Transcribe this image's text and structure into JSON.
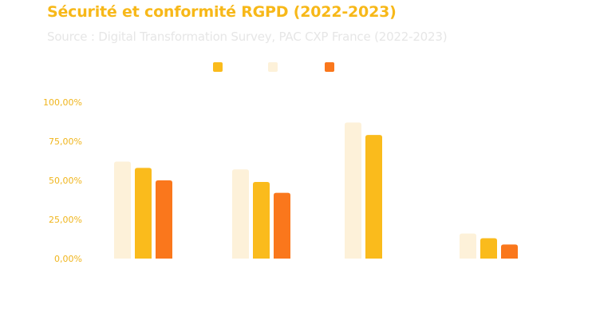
{
  "title": "Sécurité et conformité RGPD (2022-2023)",
  "subtitle": "Source : Digital Transformation Survey, PAC CXP France (2022-2023)",
  "colors": {
    "title": "#f7b819",
    "subtitle": "#e6e6e6",
    "axis_text": "#f0b51c",
    "series_light": "#fdf1d9",
    "series_gold": "#fabb1c",
    "series_orange": "#fa771c"
  },
  "legend": [
    {
      "color": "#fabb1c",
      "label": ""
    },
    {
      "color": "#fdf1d9",
      "label": ""
    },
    {
      "color": "#fa771c",
      "label": ""
    }
  ],
  "chart_data": {
    "type": "bar",
    "title": "Sécurité et conformité RGPD (2022-2023)",
    "subtitle": "Source : Digital Transformation Survey, PAC CXP France (2022-2023)",
    "categories": [
      "",
      "",
      "",
      ""
    ],
    "series": [
      {
        "color": "#fdf1d9",
        "values": [
          62,
          57,
          87,
          16
        ]
      },
      {
        "color": "#fabb1c",
        "values": [
          58,
          49,
          79,
          13
        ]
      },
      {
        "color": "#fa771c",
        "values": [
          50,
          42,
          null,
          9
        ]
      }
    ],
    "yticks": [
      "0,00%",
      "25,00%",
      "50,00%",
      "75,00%",
      "100,00%"
    ],
    "ylim": [
      0,
      100
    ],
    "grid": false,
    "legend_position": "top"
  }
}
